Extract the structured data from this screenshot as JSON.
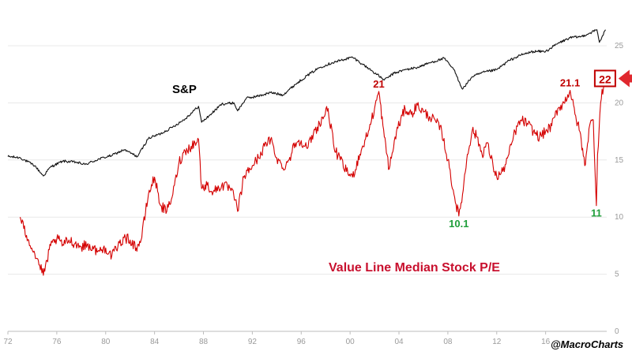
{
  "chart_data": {
    "type": "line",
    "title": "",
    "xlabel": "",
    "ylabel": "",
    "xlim": [
      1972,
      2021
    ],
    "ylim": [
      0,
      25
    ],
    "x_ticks": [
      1972,
      1976,
      1980,
      1984,
      1988,
      1992,
      1996,
      2000,
      2004,
      2008,
      2012,
      2016
    ],
    "x_tick_labels": [
      "72",
      "76",
      "80",
      "84",
      "88",
      "92",
      "96",
      "00",
      "04",
      "08",
      "12",
      "16"
    ],
    "y_ticks": [
      0,
      5,
      10,
      15,
      20,
      25
    ],
    "y_tick_labels": [
      "0",
      "5",
      "10",
      "15",
      "20",
      "25"
    ],
    "grid": "horizontal",
    "series": [
      {
        "name": "S&P",
        "color": "#111111",
        "axis": "unscaled (log-style overlay, no axis shown)",
        "x": [
          1972,
          1973,
          1974.2,
          1974.9,
          1975.5,
          1976.5,
          1977.6,
          1978.3,
          1979.5,
          1980.5,
          1981.5,
          1982.6,
          1983.5,
          1984.5,
          1985.5,
          1986.5,
          1987.6,
          1987.85,
          1988.5,
          1989.5,
          1990.5,
          1990.8,
          1991.5,
          1992.5,
          1993.5,
          1994.5,
          1995.5,
          1996.5,
          1997.5,
          1998.5,
          1999.5,
          2000.2,
          2001.0,
          2001.8,
          2002.8,
          2003.6,
          2004.5,
          2005.5,
          2006.5,
          2007.7,
          2008.5,
          2009.2,
          2010.0,
          2011.0,
          2012.0,
          2013.0,
          2014.0,
          2015.0,
          2016.0,
          2017.0,
          2018.0,
          2018.9,
          2019.6,
          2020.2,
          2020.4,
          2020.9
        ],
        "y": [
          15.3,
          15.2,
          14.5,
          13.6,
          14.4,
          14.9,
          14.8,
          14.6,
          15.1,
          15.4,
          15.9,
          15.3,
          16.9,
          17.3,
          17.9,
          18.6,
          19.7,
          18.3,
          18.9,
          19.9,
          20.0,
          19.3,
          20.4,
          20.6,
          20.9,
          20.7,
          21.6,
          22.4,
          23.1,
          23.5,
          23.8,
          24.0,
          23.4,
          22.8,
          22.0,
          22.6,
          22.9,
          23.1,
          23.5,
          23.9,
          22.9,
          21.2,
          22.3,
          22.7,
          22.9,
          23.7,
          24.2,
          24.5,
          24.5,
          25.2,
          25.7,
          25.8,
          26.1,
          26.4,
          25.3,
          26.4
        ]
      },
      {
        "name": "Value Line Median Stock P/E",
        "color": "#d40000",
        "x": [
          1973.0,
          1973.3,
          1973.7,
          1974.2,
          1974.6,
          1974.9,
          1975.2,
          1975.5,
          1976.0,
          1976.5,
          1977.0,
          1977.5,
          1978.0,
          1978.5,
          1979.0,
          1979.5,
          1980.0,
          1980.5,
          1981.0,
          1981.5,
          1982.0,
          1982.5,
          1982.9,
          1983.5,
          1984.0,
          1984.5,
          1985.0,
          1985.5,
          1986.0,
          1986.5,
          1987.0,
          1987.6,
          1987.85,
          1988.3,
          1988.8,
          1989.5,
          1990.2,
          1990.6,
          1990.8,
          1991.3,
          1992.0,
          1992.5,
          1993.0,
          1993.5,
          1994.0,
          1994.5,
          1995.0,
          1995.5,
          1996.0,
          1996.5,
          1997.0,
          1997.5,
          1998.2,
          1998.7,
          1999.2,
          1999.7,
          2000.2,
          2000.8,
          2001.5,
          2002.0,
          2002.35,
          2002.8,
          2003.2,
          2003.8,
          2004.5,
          2005.0,
          2005.5,
          2006.0,
          2006.5,
          2007.0,
          2007.5,
          2008.0,
          2008.5,
          2008.9,
          2009.2,
          2009.6,
          2010.0,
          2010.4,
          2010.8,
          2011.2,
          2011.7,
          2012.0,
          2012.5,
          2013.0,
          2013.5,
          2014.0,
          2014.5,
          2015.0,
          2015.5,
          2016.0,
          2016.5,
          2017.0,
          2017.5,
          2018.0,
          2018.4,
          2018.8,
          2019.2,
          2019.6,
          2019.9,
          2020.15,
          2020.25,
          2020.5,
          2020.8
        ],
        "y": [
          10.0,
          9.0,
          8.0,
          6.8,
          5.8,
          4.9,
          6.2,
          7.5,
          8.1,
          7.6,
          8.0,
          7.7,
          7.4,
          7.6,
          7.2,
          7.0,
          7.3,
          6.6,
          7.4,
          8.2,
          8.0,
          7.3,
          8.0,
          12.0,
          13.5,
          11.0,
          10.5,
          12.0,
          14.8,
          15.8,
          16.2,
          16.8,
          12.5,
          12.8,
          12.2,
          12.8,
          12.5,
          11.5,
          10.5,
          13.5,
          14.5,
          15.2,
          16.2,
          16.8,
          15.2,
          14.3,
          15.0,
          16.5,
          16.7,
          16.0,
          17.3,
          18.2,
          19.5,
          16.0,
          15.0,
          14.0,
          13.5,
          15.5,
          17.5,
          19.5,
          21.0,
          17.0,
          14.2,
          17.5,
          19.5,
          19.0,
          19.8,
          19.2,
          18.8,
          18.4,
          17.5,
          15.0,
          12.0,
          10.1,
          12.0,
          15.5,
          17.6,
          17.0,
          15.5,
          16.5,
          14.5,
          13.5,
          14.0,
          15.5,
          17.5,
          18.5,
          18.2,
          17.5,
          17.0,
          17.5,
          18.0,
          19.5,
          20.0,
          21.1,
          19.0,
          17.5,
          14.5,
          18.0,
          18.5,
          11.0,
          15.5,
          20.0,
          22.0
        ]
      }
    ],
    "annotations": [
      {
        "text": "21",
        "x": 2002.35,
        "y": 21.0,
        "color": "#c00000"
      },
      {
        "text": "21.1",
        "x": 2018.0,
        "y": 21.1,
        "color": "#c00000"
      },
      {
        "text": "10.1",
        "x": 2008.9,
        "y": 10.1,
        "color": "#1f9e3a"
      },
      {
        "text": "11",
        "x": 2020.15,
        "y": 11.0,
        "color": "#1f9e3a"
      },
      {
        "text": "22",
        "x": 2020.8,
        "y": 22.0,
        "color": "#c00000",
        "boxed": true,
        "arrow": true
      }
    ],
    "series_labels": {
      "sp": "S&P",
      "pe": "Value Line Median Stock P/E"
    },
    "watermark": "@MacroCharts"
  }
}
